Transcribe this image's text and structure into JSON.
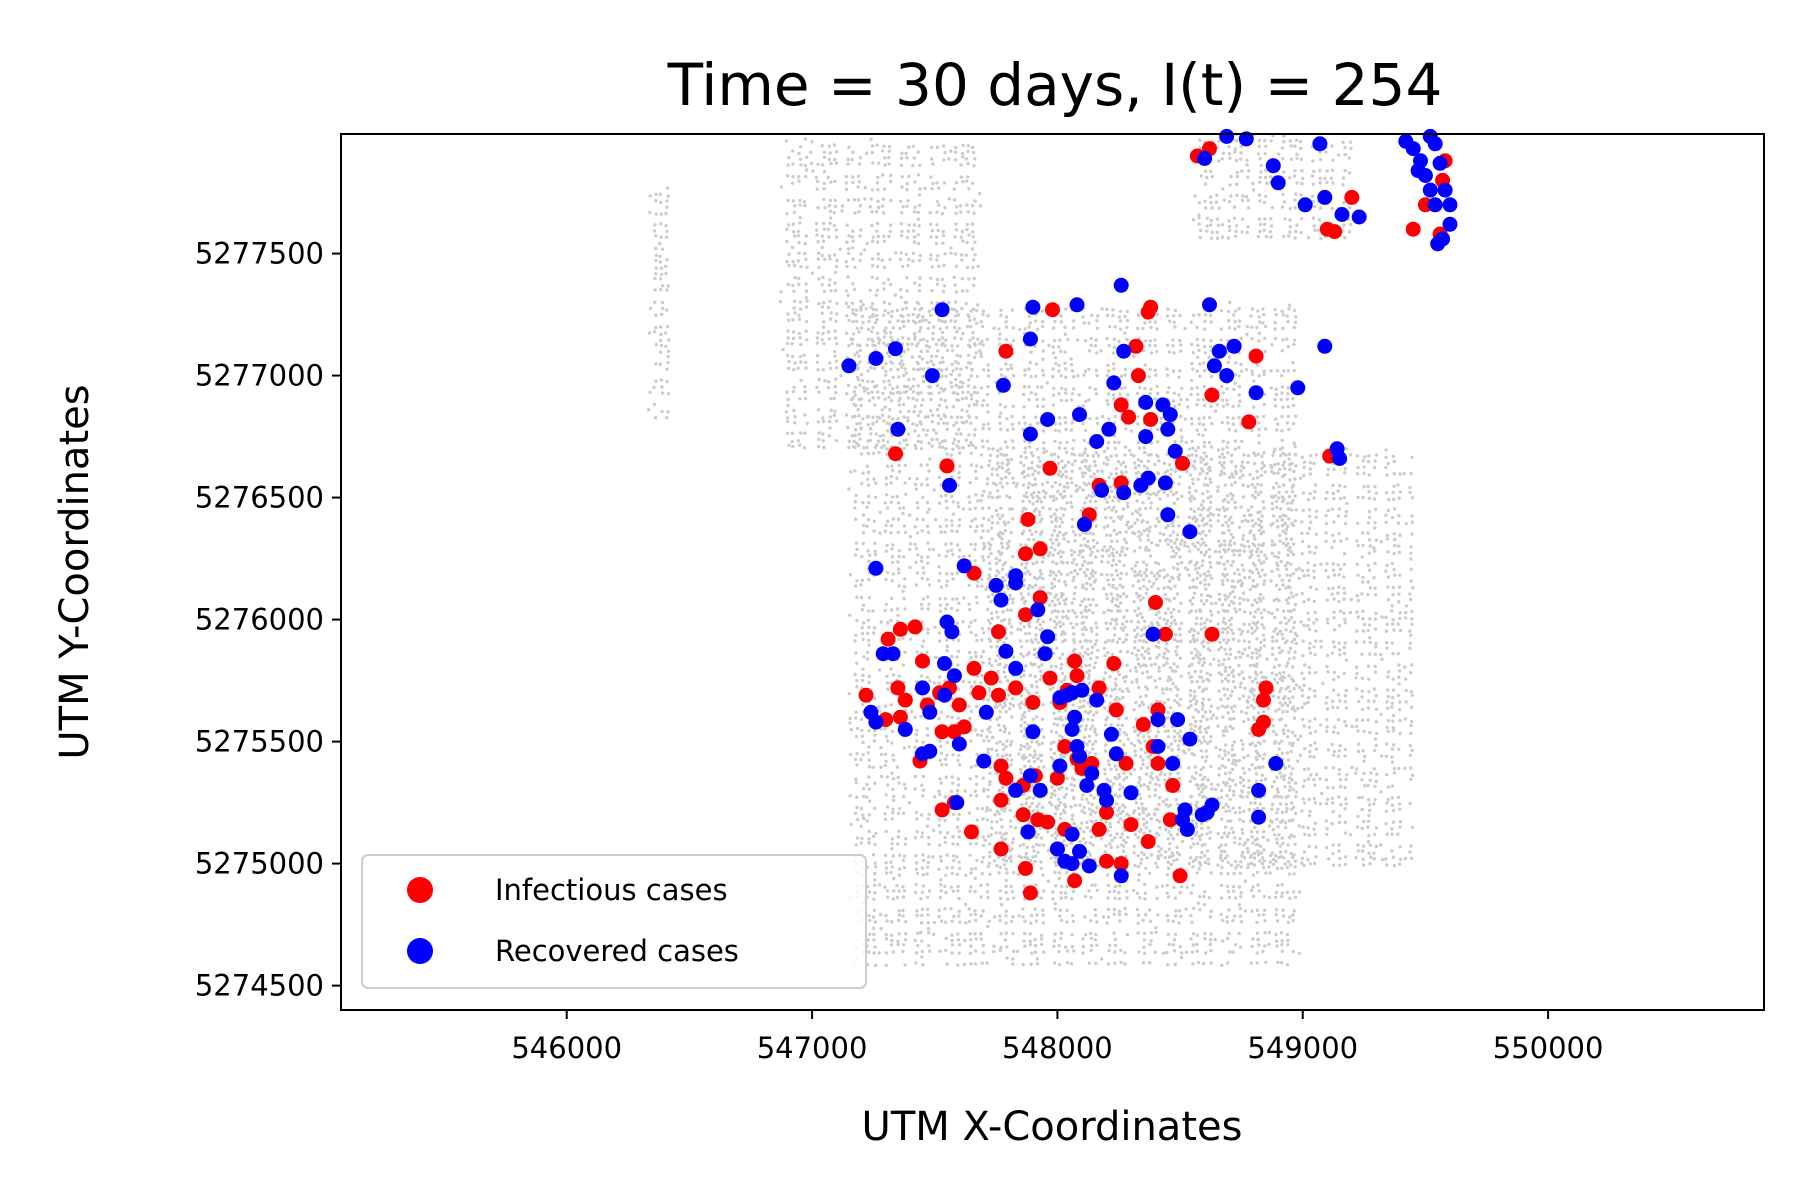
{
  "chart_data": {
    "type": "scatter",
    "title": "Time = 30 days, I(t) = 254",
    "xlabel": "UTM X-Coordinates",
    "ylabel": "UTM Y-Coordinates",
    "xlim": [
      545080,
      550880
    ],
    "ylim": [
      5274400,
      5277990
    ],
    "xticks": [
      546000,
      547000,
      548000,
      549000,
      550000
    ],
    "yticks": [
      5274500,
      5275000,
      5275500,
      5276000,
      5276500,
      5277000,
      5277500
    ],
    "grid": false,
    "legend_position": "lower-left",
    "colors": {
      "infectious": "#ff0000",
      "recovered": "#0000ff",
      "background": "#cccccc"
    },
    "background_locations": {
      "description_note": "",
      "regions": [
        {
          "x": [
            546330,
            546410
          ],
          "y": [
            5276830,
            5277770
          ]
        },
        {
          "x": [
            546870,
            547700
          ],
          "y": [
            5276700,
            5277970
          ]
        },
        {
          "x": [
            547150,
            549000
          ],
          "y": [
            5274580,
            5277300
          ]
        },
        {
          "x": [
            547700,
            549450
          ],
          "y": [
            5275000,
            5276700
          ]
        },
        {
          "x": [
            548550,
            549200
          ],
          "y": [
            5277550,
            5277990
          ]
        }
      ]
    },
    "series": [
      {
        "name": "Infectious cases",
        "color": "#ff0000",
        "points": [
          [
            548570,
            5277900
          ],
          [
            548620,
            5277930
          ],
          [
            549100,
            5277600
          ],
          [
            549130,
            5277590
          ],
          [
            549200,
            5277730
          ],
          [
            549450,
            5277600
          ],
          [
            549560,
            5277580
          ],
          [
            549570,
            5277800
          ],
          [
            549580,
            5277880
          ],
          [
            549500,
            5277700
          ],
          [
            548380,
            5277280
          ],
          [
            548370,
            5277260
          ],
          [
            548320,
            5277120
          ],
          [
            548330,
            5277000
          ],
          [
            547980,
            5277270
          ],
          [
            547790,
            5277100
          ],
          [
            548630,
            5276920
          ],
          [
            548780,
            5276810
          ],
          [
            548810,
            5277080
          ],
          [
            548260,
            5276880
          ],
          [
            548290,
            5276830
          ],
          [
            548380,
            5276820
          ],
          [
            547340,
            5276680
          ],
          [
            547550,
            5276630
          ],
          [
            547970,
            5276620
          ],
          [
            548170,
            5276550
          ],
          [
            548260,
            5276560
          ],
          [
            548510,
            5276640
          ],
          [
            549110,
            5276670
          ],
          [
            548130,
            5276430
          ],
          [
            547880,
            5276410
          ],
          [
            547870,
            5276270
          ],
          [
            547930,
            5276290
          ],
          [
            547660,
            5276190
          ],
          [
            547930,
            5276090
          ],
          [
            547870,
            5276020
          ],
          [
            548400,
            5276070
          ],
          [
            548440,
            5275940
          ],
          [
            548630,
            5275940
          ],
          [
            547310,
            5275920
          ],
          [
            547360,
            5275960
          ],
          [
            547420,
            5275970
          ],
          [
            547450,
            5275830
          ],
          [
            547760,
            5275950
          ],
          [
            547970,
            5275760
          ],
          [
            548070,
            5275830
          ],
          [
            548080,
            5275770
          ],
          [
            548230,
            5275820
          ],
          [
            547220,
            5275690
          ],
          [
            547350,
            5275720
          ],
          [
            547380,
            5275670
          ],
          [
            547470,
            5275650
          ],
          [
            547520,
            5275700
          ],
          [
            547560,
            5275720
          ],
          [
            547600,
            5275650
          ],
          [
            547660,
            5275800
          ],
          [
            547680,
            5275700
          ],
          [
            547730,
            5275760
          ],
          [
            547760,
            5275690
          ],
          [
            547830,
            5275720
          ],
          [
            547900,
            5275660
          ],
          [
            548010,
            5275660
          ],
          [
            548040,
            5275710
          ],
          [
            548170,
            5275720
          ],
          [
            548240,
            5275630
          ],
          [
            548350,
            5275570
          ],
          [
            548390,
            5275480
          ],
          [
            548410,
            5275630
          ],
          [
            548820,
            5275550
          ],
          [
            548850,
            5275720
          ],
          [
            548840,
            5275670
          ],
          [
            548840,
            5275580
          ],
          [
            547300,
            5275590
          ],
          [
            547360,
            5275600
          ],
          [
            547440,
            5275420
          ],
          [
            547530,
            5275540
          ],
          [
            547580,
            5275540
          ],
          [
            547620,
            5275560
          ],
          [
            547770,
            5275400
          ],
          [
            547790,
            5275350
          ],
          [
            547860,
            5275320
          ],
          [
            547910,
            5275360
          ],
          [
            548030,
            5275480
          ],
          [
            548000,
            5275350
          ],
          [
            548080,
            5275430
          ],
          [
            548100,
            5275390
          ],
          [
            548140,
            5275410
          ],
          [
            548280,
            5275410
          ],
          [
            548410,
            5275410
          ],
          [
            548470,
            5275320
          ],
          [
            547530,
            5275220
          ],
          [
            547580,
            5275250
          ],
          [
            547650,
            5275130
          ],
          [
            547770,
            5275260
          ],
          [
            547860,
            5275200
          ],
          [
            547920,
            5275180
          ],
          [
            547960,
            5275170
          ],
          [
            548030,
            5275140
          ],
          [
            548170,
            5275140
          ],
          [
            548200,
            5275210
          ],
          [
            548300,
            5275160
          ],
          [
            548460,
            5275180
          ],
          [
            547770,
            5275060
          ],
          [
            547870,
            5274980
          ],
          [
            547890,
            5274880
          ],
          [
            548000,
            5275060
          ],
          [
            548070,
            5274930
          ],
          [
            548200,
            5275010
          ],
          [
            548260,
            5275000
          ],
          [
            548370,
            5275090
          ],
          [
            548500,
            5274950
          ]
        ]
      },
      {
        "name": "Recovered cases",
        "color": "#0000ff",
        "points": [
          [
            548600,
            5277890
          ],
          [
            548690,
            5277980
          ],
          [
            548770,
            5277970
          ],
          [
            548880,
            5277860
          ],
          [
            548900,
            5277790
          ],
          [
            549010,
            5277700
          ],
          [
            549070,
            5277950
          ],
          [
            549090,
            5277730
          ],
          [
            549160,
            5277660
          ],
          [
            549230,
            5277650
          ],
          [
            549420,
            5277960
          ],
          [
            549450,
            5277930
          ],
          [
            549480,
            5277880
          ],
          [
            549500,
            5277820
          ],
          [
            549520,
            5277760
          ],
          [
            549540,
            5277950
          ],
          [
            549560,
            5277870
          ],
          [
            549580,
            5277760
          ],
          [
            549600,
            5277700
          ],
          [
            549600,
            5277620
          ],
          [
            549570,
            5277560
          ],
          [
            549550,
            5277540
          ],
          [
            549520,
            5277980
          ],
          [
            549470,
            5277840
          ],
          [
            549540,
            5277700
          ],
          [
            548260,
            5277370
          ],
          [
            547530,
            5277270
          ],
          [
            547900,
            5277280
          ],
          [
            548080,
            5277290
          ],
          [
            548620,
            5277290
          ],
          [
            547890,
            5277150
          ],
          [
            548270,
            5277100
          ],
          [
            548660,
            5277100
          ],
          [
            548720,
            5277120
          ],
          [
            549090,
            5277120
          ],
          [
            547150,
            5277040
          ],
          [
            547260,
            5277070
          ],
          [
            547340,
            5277110
          ],
          [
            547490,
            5277000
          ],
          [
            547780,
            5276960
          ],
          [
            548230,
            5276970
          ],
          [
            548640,
            5277040
          ],
          [
            548690,
            5277000
          ],
          [
            548980,
            5276950
          ],
          [
            548810,
            5276930
          ],
          [
            547350,
            5276780
          ],
          [
            547890,
            5276760
          ],
          [
            547960,
            5276820
          ],
          [
            548090,
            5276840
          ],
          [
            548160,
            5276730
          ],
          [
            548210,
            5276780
          ],
          [
            548360,
            5276890
          ],
          [
            548430,
            5276880
          ],
          [
            548460,
            5276840
          ],
          [
            548450,
            5276780
          ],
          [
            548480,
            5276690
          ],
          [
            548360,
            5276750
          ],
          [
            549140,
            5276700
          ],
          [
            549150,
            5276660
          ],
          [
            547560,
            5276550
          ],
          [
            548180,
            5276530
          ],
          [
            548270,
            5276520
          ],
          [
            548340,
            5276550
          ],
          [
            548370,
            5276580
          ],
          [
            548440,
            5276560
          ],
          [
            548450,
            5276430
          ],
          [
            548540,
            5276360
          ],
          [
            548110,
            5276390
          ],
          [
            547260,
            5276210
          ],
          [
            547620,
            5276220
          ],
          [
            547750,
            5276140
          ],
          [
            547770,
            5276080
          ],
          [
            547830,
            5276150
          ],
          [
            547830,
            5276180
          ],
          [
            547920,
            5276040
          ],
          [
            547960,
            5275930
          ],
          [
            547950,
            5275860
          ],
          [
            547550,
            5275990
          ],
          [
            547570,
            5275950
          ],
          [
            547290,
            5275860
          ],
          [
            547330,
            5275860
          ],
          [
            547540,
            5275820
          ],
          [
            547710,
            5275620
          ],
          [
            547450,
            5275720
          ],
          [
            547480,
            5275620
          ],
          [
            547540,
            5275690
          ],
          [
            547580,
            5275770
          ],
          [
            547790,
            5275870
          ],
          [
            547830,
            5275800
          ],
          [
            547900,
            5275540
          ],
          [
            548010,
            5275680
          ],
          [
            548040,
            5275690
          ],
          [
            548060,
            5275700
          ],
          [
            548100,
            5275710
          ],
          [
            548160,
            5275670
          ],
          [
            548390,
            5275940
          ],
          [
            548410,
            5275590
          ],
          [
            548410,
            5275480
          ],
          [
            548490,
            5275590
          ],
          [
            548540,
            5275510
          ],
          [
            548890,
            5275410
          ],
          [
            548820,
            5275300
          ],
          [
            548820,
            5275190
          ],
          [
            547240,
            5275620
          ],
          [
            547260,
            5275580
          ],
          [
            547380,
            5275550
          ],
          [
            547450,
            5275450
          ],
          [
            547480,
            5275460
          ],
          [
            547600,
            5275490
          ],
          [
            547700,
            5275420
          ],
          [
            547590,
            5275250
          ],
          [
            547830,
            5275300
          ],
          [
            547890,
            5275360
          ],
          [
            547930,
            5275300
          ],
          [
            548010,
            5275400
          ],
          [
            548060,
            5275550
          ],
          [
            548070,
            5275600
          ],
          [
            548080,
            5275480
          ],
          [
            548090,
            5275440
          ],
          [
            548120,
            5275320
          ],
          [
            548140,
            5275370
          ],
          [
            548190,
            5275300
          ],
          [
            548200,
            5275260
          ],
          [
            548220,
            5275530
          ],
          [
            548240,
            5275450
          ],
          [
            548300,
            5275290
          ],
          [
            548470,
            5275410
          ],
          [
            548510,
            5275180
          ],
          [
            548520,
            5275220
          ],
          [
            548530,
            5275140
          ],
          [
            548590,
            5275200
          ],
          [
            548610,
            5275210
          ],
          [
            548630,
            5275240
          ],
          [
            548000,
            5275060
          ],
          [
            548030,
            5275010
          ],
          [
            548060,
            5275000
          ],
          [
            548090,
            5275050
          ],
          [
            548060,
            5275120
          ],
          [
            547880,
            5275130
          ],
          [
            548130,
            5274990
          ],
          [
            548260,
            5274950
          ]
        ]
      }
    ]
  }
}
